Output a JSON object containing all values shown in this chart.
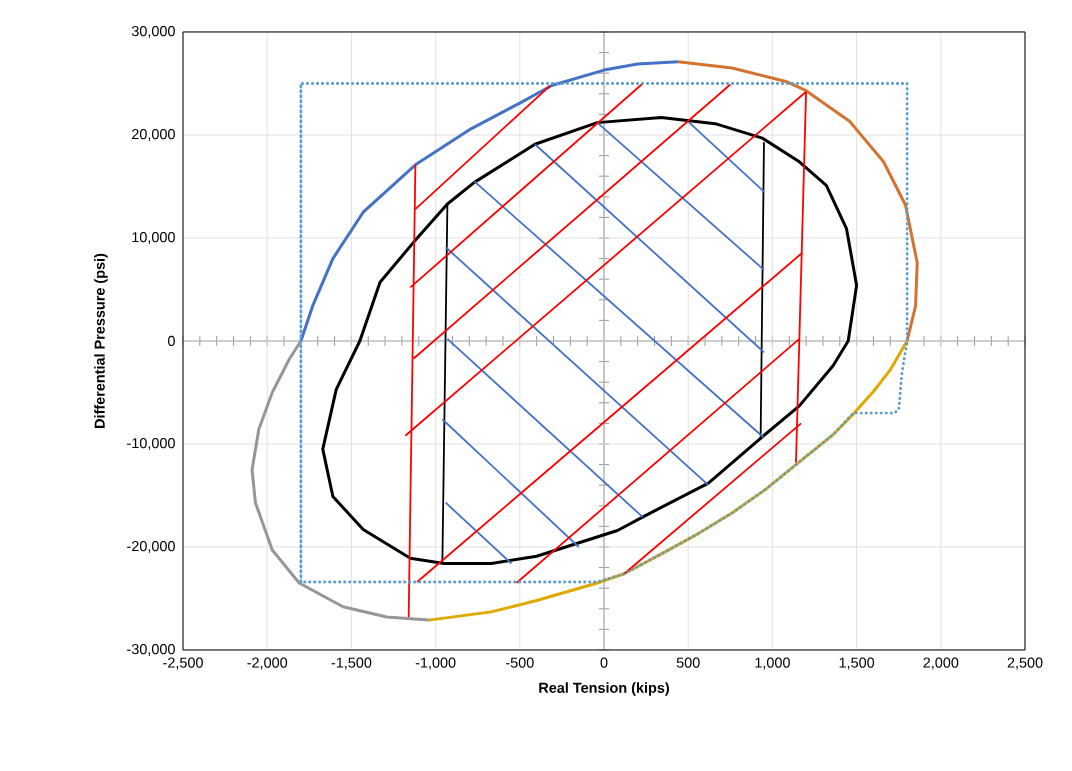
{
  "chart_data": {
    "type": "line",
    "xlabel": "Real Tension (kips)",
    "ylabel": "Differential Pressure (psi)",
    "xlim": [
      -2500,
      2500
    ],
    "ylim": [
      -30000,
      30000
    ],
    "grid": true,
    "marker": "none",
    "xticks": [
      {
        "value": -2500,
        "label": "-2,500"
      },
      {
        "value": -2000,
        "label": "-2,000"
      },
      {
        "value": -1500,
        "label": "-1,500"
      },
      {
        "value": -1000,
        "label": "-1,000"
      },
      -500,
      0,
      500,
      {
        "value": 1000,
        "label": "1,000"
      },
      {
        "value": 1500,
        "label": "1,500"
      },
      {
        "value": 2000,
        "label": "2,000"
      },
      {
        "value": 2500,
        "label": "2,500"
      }
    ],
    "yticks": [
      {
        "value": -30000,
        "label": "-30,000"
      },
      {
        "value": -20000,
        "label": "-20,000"
      },
      {
        "value": -10000,
        "label": "-10,000"
      },
      0,
      {
        "value": 10000,
        "label": "10,000"
      },
      {
        "value": 20000,
        "label": "20,000"
      },
      {
        "value": 30000,
        "label": "30,000"
      }
    ],
    "series": [
      {
        "color": "#4472c4",
        "x": [
          -1800,
          -1730,
          -1610,
          -1430,
          -1120,
          -790,
          -500,
          -310,
          0,
          200,
          440
        ],
        "values": [
          0,
          3400,
          8000,
          12500,
          17100,
          20600,
          23100,
          24800,
          26300,
          26900,
          27100
        ]
      },
      {
        "color": "#d4722f",
        "x": [
          440,
          760,
          1080,
          1200,
          1460,
          1660,
          1790,
          1860,
          1850,
          1800
        ],
        "values": [
          27100,
          26500,
          25200,
          24300,
          21300,
          17400,
          13200,
          7600,
          3400,
          0
        ]
      },
      {
        "color": "#e0a800",
        "x": [
          1800,
          1700,
          1600,
          1480,
          1360,
          1140,
          960,
          760,
          560,
          360,
          120,
          -40,
          -400,
          -670,
          -1040
        ],
        "values": [
          0,
          -2800,
          -4900,
          -7100,
          -9100,
          -12000,
          -14400,
          -16700,
          -18700,
          -20500,
          -22600,
          -23500,
          -25200,
          -26300,
          -27100
        ]
      },
      {
        "color": "#969696",
        "x": [
          -1040,
          -1290,
          -1550,
          -1810,
          -1970,
          -2070,
          -2090,
          -2050,
          -1970,
          -1870,
          -1800
        ],
        "values": [
          -27100,
          -26800,
          -25800,
          -23500,
          -20300,
          -15700,
          -12500,
          -8600,
          -5000,
          -1800,
          0
        ]
      },
      {
        "color": "#000000",
        "x": [
          1450,
          1500,
          1440,
          1320,
          1160,
          940,
          660,
          340,
          -40,
          -410,
          -770,
          -930,
          -1130,
          -1330,
          -1450,
          -1590,
          -1670,
          -1610,
          -1430,
          -1150,
          -950,
          -670,
          -400,
          80,
          240,
          620,
          940,
          1160,
          1360,
          1450,
          1500
        ],
        "values": [
          0,
          5400,
          10900,
          15100,
          17400,
          19700,
          21100,
          21700,
          21200,
          19100,
          15400,
          13300,
          9600,
          5700,
          0,
          -4700,
          -10500,
          -15100,
          -18300,
          -21100,
          -21600,
          -21600,
          -20900,
          -18400,
          -17000,
          -13800,
          -9300,
          -6300,
          -2400,
          0,
          5400
        ]
      },
      {
        "color": "#000000",
        "x": [
          -930,
          -960,
          null,
          950,
          930
        ],
        "values": [
          13200,
          -21600,
          null,
          19300,
          -9400
        ]
      },
      {
        "color": "#4472c4",
        "x": [
          500,
          950,
          null,
          -40,
          950,
          null,
          -410,
          950,
          null,
          -770,
          950,
          null,
          -940,
          620,
          null,
          -930,
          230,
          null,
          -960,
          -150,
          null,
          -940,
          -550
        ],
        "values": [
          21300,
          14500,
          null,
          21200,
          6900,
          null,
          19100,
          -1100,
          null,
          15500,
          -9400,
          null,
          9100,
          -14000,
          null,
          200,
          -17100,
          null,
          -7600,
          -20000,
          null,
          -15700,
          -21600
        ]
      },
      {
        "color": "#ff0000",
        "x": [
          -1120,
          -1160,
          null,
          1200,
          1140,
          null,
          -1120,
          -320,
          null,
          -1150,
          230,
          null,
          -1130,
          750,
          null,
          -1180,
          1200,
          null,
          -1110,
          1180,
          null,
          -520,
          1160,
          null,
          120,
          1170
        ],
        "values": [
          17100,
          -26800,
          null,
          24200,
          -11800,
          null,
          12800,
          24800,
          null,
          5200,
          25000,
          null,
          -1700,
          24900,
          null,
          -9200,
          24200,
          null,
          -23400,
          8600,
          null,
          -23500,
          200,
          null,
          -22600,
          -8000
        ]
      },
      {
        "color": "#5b9bd5",
        "line_style": "dotted",
        "x": [
          -1800,
          -1800,
          1800,
          1800,
          1770,
          1750,
          1720,
          1480,
          1360,
          1140,
          960,
          760,
          560,
          360,
          120,
          -40,
          -1800,
          -1800
        ],
        "values": [
          -23400,
          25000,
          25000,
          0,
          -3000,
          -6700,
          -7000,
          -7000,
          -9100,
          -12000,
          -14400,
          -16700,
          -18700,
          -20500,
          -22600,
          -23400,
          -23400,
          25000
        ]
      }
    ]
  }
}
